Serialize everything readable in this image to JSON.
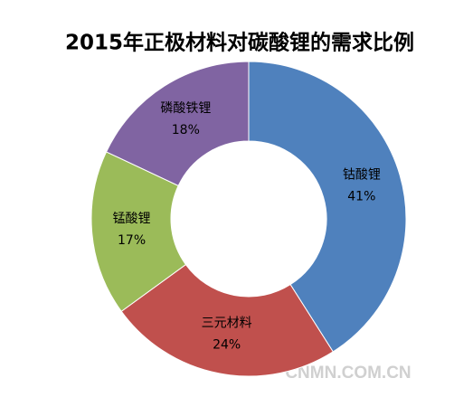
{
  "chart_data": {
    "type": "donut",
    "title": "2015年正极材料对碳酸锂的需求比例",
    "categories": [
      "钴酸锂",
      "三元材料",
      "锰酸锂",
      "磷酸铁锂"
    ],
    "values": [
      41,
      24,
      17,
      18
    ],
    "value_labels": [
      "41%",
      "24%",
      "17%",
      "18%"
    ],
    "colors": [
      "#4f81bd",
      "#c0504d",
      "#9bbb59",
      "#8064a2"
    ],
    "watermark": "CNMN.COM.CN"
  }
}
